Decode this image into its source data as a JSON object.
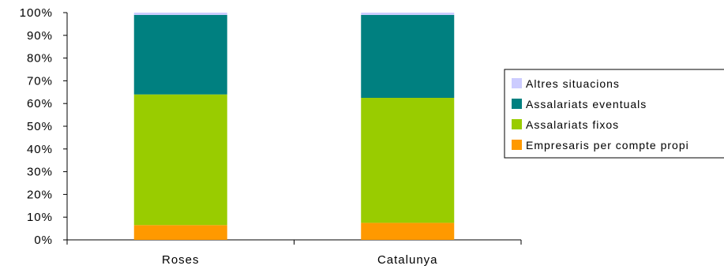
{
  "chart_data": {
    "type": "bar",
    "stacked": true,
    "percent_stacked": true,
    "categories": [
      "Roses",
      "Catalunya"
    ],
    "series": [
      {
        "name": "Empresaris per compte propi",
        "color": "#ff9900",
        "values": [
          6.5,
          7.5
        ]
      },
      {
        "name": "Assalariats fixos",
        "color": "#99cc00",
        "values": [
          57.5,
          55
        ]
      },
      {
        "name": "Assalariats eventuals",
        "color": "#008080",
        "values": [
          35,
          36.5
        ]
      },
      {
        "name": "Altres situacions",
        "color": "#ccccff",
        "values": [
          1,
          1
        ]
      }
    ],
    "yticks": [
      "0%",
      "10%",
      "20%",
      "30%",
      "40%",
      "50%",
      "60%",
      "70%",
      "80%",
      "90%",
      "100%"
    ],
    "ylim": [
      0,
      100
    ],
    "legend_position": "right",
    "legend_order": [
      "Altres situacions",
      "Assalariats eventuals",
      "Assalariats fixos",
      "Empresaris per compte propi"
    ],
    "grid": false
  }
}
